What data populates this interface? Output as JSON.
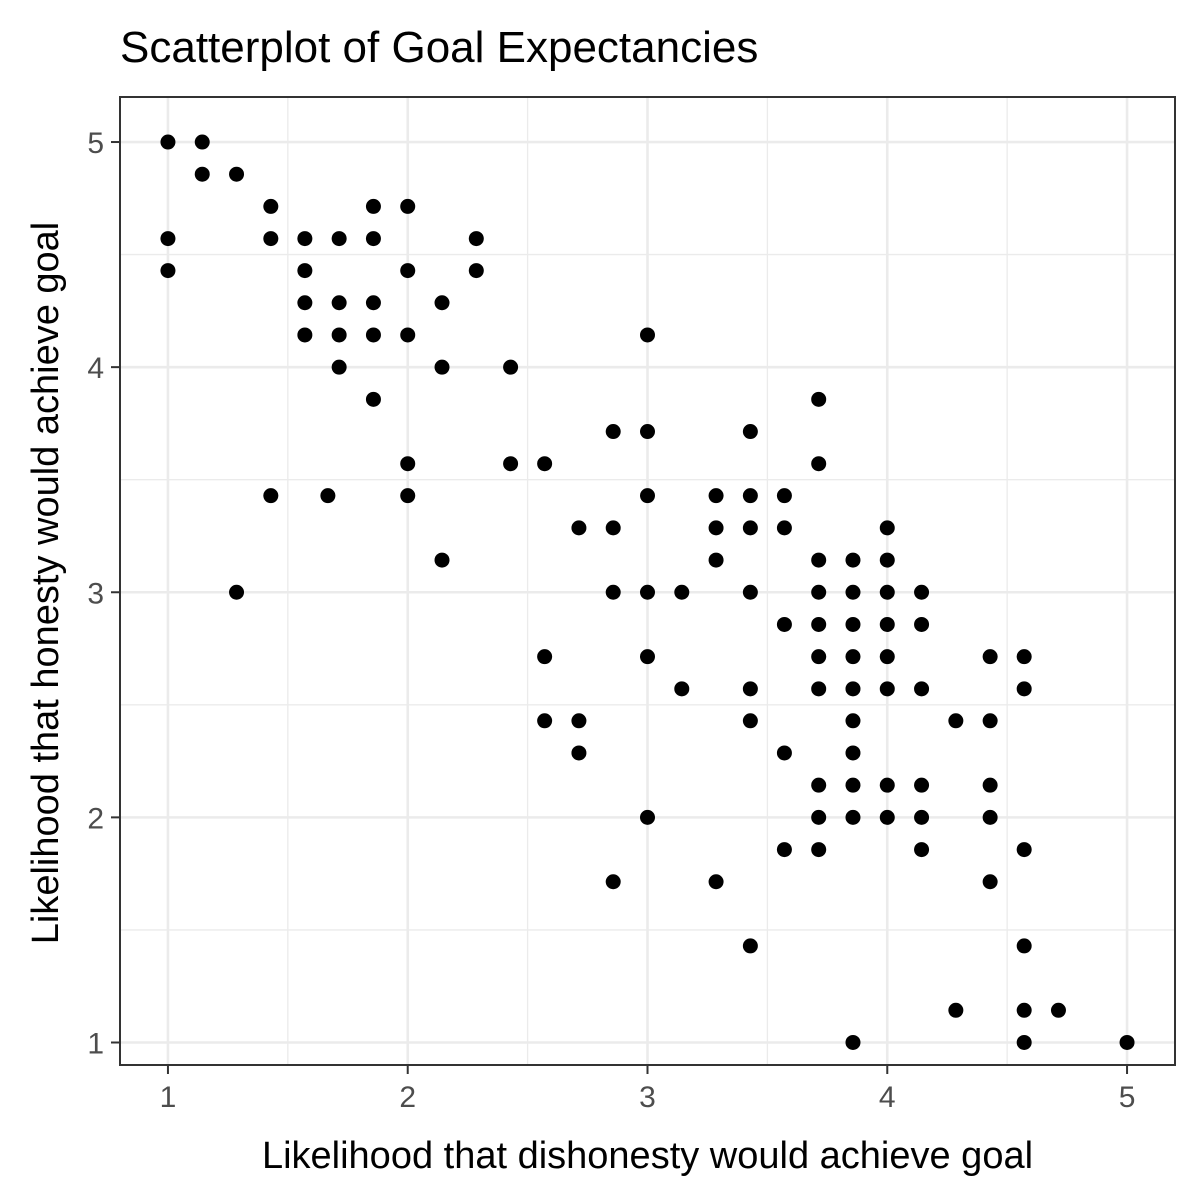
{
  "chart_data": {
    "type": "scatter",
    "title": "Scatterplot of Goal Expectancies",
    "xlabel": "Likelihood that dishonesty would achieve goal",
    "ylabel": "Likelihood that honesty would achieve goal",
    "xlim": [
      0.8,
      5.2
    ],
    "ylim": [
      0.9,
      5.2
    ],
    "x_ticks": [
      1,
      2,
      3,
      4,
      5
    ],
    "y_ticks": [
      1,
      2,
      3,
      4,
      5
    ],
    "grid": true,
    "point_color": "#000000",
    "points": [
      [
        1,
        5
      ],
      [
        1.143,
        5
      ],
      [
        1.143,
        4.857
      ],
      [
        1.286,
        4.857
      ],
      [
        1.429,
        4.714
      ],
      [
        1.857,
        4.714
      ],
      [
        2,
        4.714
      ],
      [
        1,
        4.571
      ],
      [
        1.429,
        4.571
      ],
      [
        1.571,
        4.571
      ],
      [
        1.714,
        4.571
      ],
      [
        1.857,
        4.571
      ],
      [
        2.286,
        4.571
      ],
      [
        1,
        4.429
      ],
      [
        1.571,
        4.429
      ],
      [
        2,
        4.429
      ],
      [
        2.286,
        4.429
      ],
      [
        1.571,
        4.286
      ],
      [
        1.714,
        4.286
      ],
      [
        1.857,
        4.286
      ],
      [
        2.143,
        4.286
      ],
      [
        1.571,
        4.143
      ],
      [
        1.714,
        4.143
      ],
      [
        1.857,
        4.143
      ],
      [
        2,
        4.143
      ],
      [
        3,
        4.143
      ],
      [
        1.714,
        4
      ],
      [
        2.143,
        4
      ],
      [
        2.429,
        4
      ],
      [
        1.857,
        3.857
      ],
      [
        3.714,
        3.857
      ],
      [
        2.857,
        3.714
      ],
      [
        3,
        3.714
      ],
      [
        3.429,
        3.714
      ],
      [
        2,
        3.571
      ],
      [
        2.429,
        3.571
      ],
      [
        2.571,
        3.571
      ],
      [
        3.714,
        3.571
      ],
      [
        1.429,
        3.429
      ],
      [
        1.667,
        3.429
      ],
      [
        2,
        3.429
      ],
      [
        3,
        3.429
      ],
      [
        3.286,
        3.429
      ],
      [
        3.429,
        3.429
      ],
      [
        3.571,
        3.429
      ],
      [
        2.714,
        3.286
      ],
      [
        2.857,
        3.286
      ],
      [
        3.286,
        3.286
      ],
      [
        3.429,
        3.286
      ],
      [
        3.571,
        3.286
      ],
      [
        4,
        3.286
      ],
      [
        2.143,
        3.143
      ],
      [
        3.286,
        3.143
      ],
      [
        3.714,
        3.143
      ],
      [
        3.857,
        3.143
      ],
      [
        4,
        3.143
      ],
      [
        1.286,
        3
      ],
      [
        2.857,
        3
      ],
      [
        3,
        3
      ],
      [
        3.143,
        3
      ],
      [
        3.429,
        3
      ],
      [
        3.714,
        3
      ],
      [
        3.857,
        3
      ],
      [
        4,
        3
      ],
      [
        4.143,
        3
      ],
      [
        3.571,
        2.857
      ],
      [
        3.714,
        2.857
      ],
      [
        3.857,
        2.857
      ],
      [
        4,
        2.857
      ],
      [
        4.143,
        2.857
      ],
      [
        2.571,
        2.714
      ],
      [
        3,
        2.714
      ],
      [
        3.714,
        2.714
      ],
      [
        3.857,
        2.714
      ],
      [
        4,
        2.714
      ],
      [
        4.429,
        2.714
      ],
      [
        4.571,
        2.714
      ],
      [
        3.143,
        2.571
      ],
      [
        3.429,
        2.571
      ],
      [
        3.714,
        2.571
      ],
      [
        3.857,
        2.571
      ],
      [
        4,
        2.571
      ],
      [
        4.143,
        2.571
      ],
      [
        4.571,
        2.571
      ],
      [
        2.571,
        2.429
      ],
      [
        2.714,
        2.429
      ],
      [
        3.429,
        2.429
      ],
      [
        3.857,
        2.429
      ],
      [
        4.286,
        2.429
      ],
      [
        4.429,
        2.429
      ],
      [
        2.714,
        2.286
      ],
      [
        3.571,
        2.286
      ],
      [
        3.857,
        2.286
      ],
      [
        3.714,
        2.143
      ],
      [
        3.857,
        2.143
      ],
      [
        4,
        2.143
      ],
      [
        4.143,
        2.143
      ],
      [
        4.429,
        2.143
      ],
      [
        3,
        2
      ],
      [
        3.714,
        2
      ],
      [
        3.857,
        2
      ],
      [
        4,
        2
      ],
      [
        4.143,
        2
      ],
      [
        4.429,
        2
      ],
      [
        3.571,
        1.857
      ],
      [
        3.714,
        1.857
      ],
      [
        4.143,
        1.857
      ],
      [
        4.571,
        1.857
      ],
      [
        2.857,
        1.714
      ],
      [
        3.286,
        1.714
      ],
      [
        4.429,
        1.714
      ],
      [
        3.429,
        1.429
      ],
      [
        4.571,
        1.429
      ],
      [
        4.286,
        1.143
      ],
      [
        4.571,
        1.143
      ],
      [
        4.714,
        1.143
      ],
      [
        3.857,
        1
      ],
      [
        4.571,
        1
      ],
      [
        5,
        1
      ]
    ]
  }
}
